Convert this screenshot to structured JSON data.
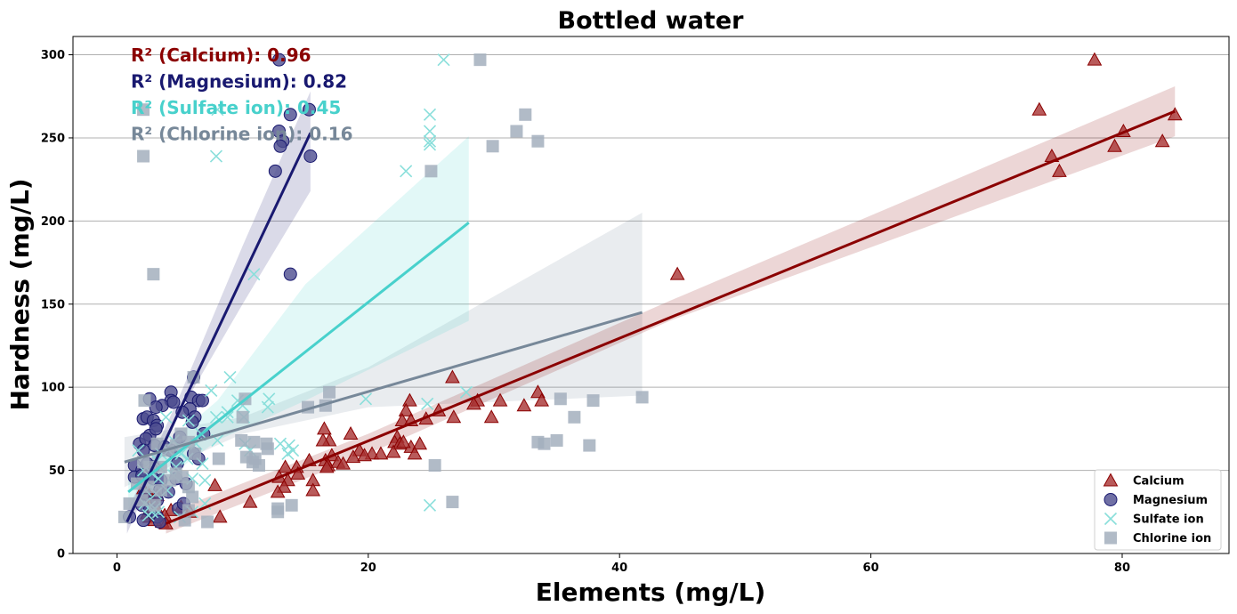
{
  "chart_data": {
    "type": "scatter",
    "title": "Bottled water",
    "xlabel": "Elements (mg/L)",
    "ylabel": "Hardness (mg/L)",
    "xlim": [
      -3.5,
      88.5
    ],
    "ylim": [
      0,
      311
    ],
    "xticks": [
      0,
      20,
      40,
      60,
      80
    ],
    "yticks": [
      0,
      50,
      100,
      150,
      200,
      250,
      300
    ],
    "grid": "horizontal",
    "legend_position": "bottom-right",
    "annotations": [
      {
        "series": "Calcium",
        "text": "R² (Calcium): 0.96"
      },
      {
        "series": "Magnesium",
        "text": "R² (Magnesium): 0.82"
      },
      {
        "series": "Sulfate ion",
        "text": "R² (Sulfate ion): 0.45"
      },
      {
        "series": "Chlorine ion",
        "text": "R² (Chlorine ion): 0.16"
      }
    ],
    "series": [
      {
        "name": "Calcium",
        "marker": "triangle",
        "color": "#8b0000",
        "fill": "#a83232",
        "regression": {
          "x0": 3.9,
          "y0": 18,
          "x1": 84.2,
          "y1": 266
        },
        "band": [
          [
            3.9,
            12,
            24
          ],
          [
            20,
            60,
            72
          ],
          [
            44,
            140,
            152
          ],
          [
            84.2,
            251,
            281
          ]
        ],
        "points": [
          [
            77.8,
            297
          ],
          [
            73.4,
            267
          ],
          [
            84.2,
            264
          ],
          [
            80.1,
            254
          ],
          [
            74.4,
            239
          ],
          [
            83.2,
            248
          ],
          [
            79.4,
            245
          ],
          [
            75.0,
            230
          ],
          [
            44.6,
            168
          ],
          [
            26.7,
            106
          ],
          [
            23.3,
            92
          ],
          [
            33.5,
            97
          ],
          [
            33.8,
            92
          ],
          [
            28.7,
            92
          ],
          [
            30.5,
            92
          ],
          [
            28.4,
            90
          ],
          [
            32.4,
            89
          ],
          [
            25.6,
            86
          ],
          [
            23.0,
            86
          ],
          [
            26.8,
            82
          ],
          [
            29.8,
            82
          ],
          [
            24.6,
            81
          ],
          [
            22.7,
            80
          ],
          [
            23.4,
            80
          ],
          [
            16.5,
            75
          ],
          [
            18.6,
            72
          ],
          [
            16.9,
            68
          ],
          [
            16.4,
            68
          ],
          [
            22.3,
            70
          ],
          [
            22.1,
            67
          ],
          [
            22.5,
            66
          ],
          [
            23.4,
            64
          ],
          [
            24.1,
            66
          ],
          [
            22.8,
            67
          ],
          [
            19.3,
            62
          ],
          [
            18.8,
            58
          ],
          [
            20.3,
            60
          ],
          [
            21.0,
            60
          ],
          [
            22.0,
            61
          ],
          [
            23.7,
            60
          ],
          [
            19.7,
            59
          ],
          [
            16.6,
            56
          ],
          [
            17.1,
            59
          ],
          [
            15.3,
            56
          ],
          [
            16.8,
            53
          ],
          [
            17.6,
            55
          ],
          [
            18.0,
            54
          ],
          [
            16.7,
            52
          ],
          [
            14.3,
            52
          ],
          [
            13.4,
            52
          ],
          [
            12.9,
            46
          ],
          [
            14.4,
            48
          ],
          [
            13.6,
            44
          ],
          [
            13.3,
            40
          ],
          [
            15.6,
            44
          ],
          [
            15.6,
            38
          ],
          [
            12.8,
            37
          ],
          [
            7.8,
            41
          ],
          [
            10.6,
            31
          ],
          [
            8.2,
            22
          ],
          [
            5.8,
            25
          ],
          [
            5.1,
            28
          ],
          [
            4.3,
            26
          ],
          [
            3.8,
            23
          ],
          [
            3.6,
            19
          ],
          [
            3.9,
            18
          ],
          [
            2.8,
            33
          ],
          [
            2.7,
            27
          ],
          [
            2.6,
            22
          ],
          [
            3.0,
            20
          ],
          [
            2.4,
            24
          ],
          [
            3.1,
            28
          ],
          [
            2.1,
            39
          ],
          [
            2.5,
            36
          ],
          [
            3.2,
            35
          ]
        ]
      },
      {
        "name": "Magnesium",
        "marker": "circle",
        "color": "#191970",
        "fill": "#4c4c8e",
        "regression": {
          "x0": 0.8,
          "y0": 19,
          "x1": 15.4,
          "y1": 253
        },
        "band": [
          [
            0.8,
            12,
            25
          ],
          [
            5,
            85,
            95
          ],
          [
            10,
            150,
            185
          ],
          [
            15.4,
            218,
            278
          ]
        ],
        "points": [
          [
            12.9,
            297
          ],
          [
            15.3,
            267
          ],
          [
            13.8,
            264
          ],
          [
            12.9,
            254
          ],
          [
            13.2,
            248
          ],
          [
            13.0,
            245
          ],
          [
            15.4,
            239
          ],
          [
            12.6,
            230
          ],
          [
            13.8,
            168
          ],
          [
            6.1,
            106
          ],
          [
            4.3,
            97
          ],
          [
            2.6,
            93
          ],
          [
            5.9,
            94
          ],
          [
            4.3,
            92
          ],
          [
            6.5,
            92
          ],
          [
            6.8,
            92
          ],
          [
            3.6,
            89
          ],
          [
            3.1,
            88
          ],
          [
            4.5,
            91
          ],
          [
            5.8,
            87
          ],
          [
            2.1,
            81
          ],
          [
            2.4,
            82
          ],
          [
            6.2,
            82
          ],
          [
            5.2,
            85
          ],
          [
            2.9,
            80
          ],
          [
            3.2,
            77
          ],
          [
            6.0,
            79
          ],
          [
            2.6,
            71
          ],
          [
            3.1,
            75
          ],
          [
            6.9,
            72
          ],
          [
            5.0,
            70
          ],
          [
            1.8,
            66
          ],
          [
            2.3,
            69
          ],
          [
            2.1,
            62
          ],
          [
            3.0,
            65
          ],
          [
            3.8,
            64
          ],
          [
            4.3,
            62
          ],
          [
            6.1,
            60
          ],
          [
            1.4,
            53
          ],
          [
            2.0,
            50
          ],
          [
            2.4,
            54
          ],
          [
            4.8,
            54
          ],
          [
            6.5,
            57
          ],
          [
            1.4,
            46
          ],
          [
            2.0,
            47
          ],
          [
            2.9,
            45
          ],
          [
            3.5,
            44
          ],
          [
            4.7,
            45
          ],
          [
            5.5,
            42
          ],
          [
            2.2,
            35
          ],
          [
            3.2,
            32
          ],
          [
            3.4,
            38
          ],
          [
            4.1,
            37
          ],
          [
            2.0,
            29
          ],
          [
            2.6,
            26
          ],
          [
            3.2,
            22
          ],
          [
            4.9,
            27
          ],
          [
            5.3,
            30
          ],
          [
            2.1,
            20
          ],
          [
            3.4,
            19
          ],
          [
            1.0,
            22
          ],
          [
            2.9,
            52
          ]
        ]
      },
      {
        "name": "Sulfate ion",
        "marker": "x",
        "color": "#48d1cc",
        "fill": "#8adfdb",
        "regression": {
          "x0": 0.9,
          "y0": 37,
          "x1": 28.0,
          "y1": 199
        },
        "band": [
          [
            0.9,
            28,
            46
          ],
          [
            8,
            68,
            92
          ],
          [
            15,
            92,
            162
          ],
          [
            28,
            140,
            251
          ]
        ],
        "points": [
          [
            26.0,
            297
          ],
          [
            8.0,
            267
          ],
          [
            24.9,
            264
          ],
          [
            24.9,
            254
          ],
          [
            24.9,
            248
          ],
          [
            24.9,
            246
          ],
          [
            7.9,
            239
          ],
          [
            23.0,
            230
          ],
          [
            10.9,
            168
          ],
          [
            9.0,
            106
          ],
          [
            7.5,
            98
          ],
          [
            27.8,
            97
          ],
          [
            12.1,
            93
          ],
          [
            19.8,
            93
          ],
          [
            24.7,
            90
          ],
          [
            9.6,
            92
          ],
          [
            10.0,
            89
          ],
          [
            12.0,
            88
          ],
          [
            8.8,
            85
          ],
          [
            8.8,
            82
          ],
          [
            7.9,
            82
          ],
          [
            3.9,
            82
          ],
          [
            5.7,
            80
          ],
          [
            10.1,
            82
          ],
          [
            6.7,
            72
          ],
          [
            4.5,
            68
          ],
          [
            8.0,
            68
          ],
          [
            6.3,
            66
          ],
          [
            10.2,
            66
          ],
          [
            13.7,
            65
          ],
          [
            13.0,
            66
          ],
          [
            14.0,
            62
          ],
          [
            13.6,
            60
          ],
          [
            10.6,
            62
          ],
          [
            4.1,
            62
          ],
          [
            3.5,
            60
          ],
          [
            5.1,
            60
          ],
          [
            5.6,
            57
          ],
          [
            3.2,
            56
          ],
          [
            3.4,
            52
          ],
          [
            4.7,
            52
          ],
          [
            6.8,
            54
          ],
          [
            2.1,
            50
          ],
          [
            2.8,
            48
          ],
          [
            3.3,
            45
          ],
          [
            4.5,
            47
          ],
          [
            6.0,
            45
          ],
          [
            7.0,
            44
          ],
          [
            2.3,
            38
          ],
          [
            3.1,
            36
          ],
          [
            4.0,
            38
          ],
          [
            2.2,
            30
          ],
          [
            2.6,
            28
          ],
          [
            3.0,
            27
          ],
          [
            3.3,
            25
          ],
          [
            2.8,
            25
          ],
          [
            2.5,
            23
          ],
          [
            6.0,
            25
          ],
          [
            5.0,
            22
          ],
          [
            24.9,
            29
          ],
          [
            7.0,
            30
          ],
          [
            1.7,
            62
          ]
        ]
      },
      {
        "name": "Chlorine ion",
        "marker": "square",
        "color": "#778899",
        "fill": "#a3afbd",
        "regression": {
          "x0": 0.6,
          "y0": 55,
          "x1": 41.8,
          "y1": 145
        },
        "band": [
          [
            0.6,
            40,
            70
          ],
          [
            10,
            72,
            82
          ],
          [
            20,
            88,
            112
          ],
          [
            41.8,
            95,
            205
          ]
        ],
        "points": [
          [
            28.9,
            297
          ],
          [
            2.1,
            267
          ],
          [
            32.5,
            264
          ],
          [
            31.8,
            254
          ],
          [
            33.5,
            248
          ],
          [
            29.9,
            245
          ],
          [
            2.1,
            239
          ],
          [
            25.0,
            230
          ],
          [
            2.9,
            168
          ],
          [
            6.1,
            106
          ],
          [
            16.9,
            97
          ],
          [
            2.2,
            92
          ],
          [
            10.2,
            93
          ],
          [
            15.2,
            88
          ],
          [
            16.6,
            89
          ],
          [
            35.3,
            93
          ],
          [
            37.9,
            92
          ],
          [
            41.8,
            94
          ],
          [
            36.4,
            82
          ],
          [
            10.0,
            82
          ],
          [
            33.5,
            67
          ],
          [
            34.0,
            66
          ],
          [
            35.0,
            68
          ],
          [
            37.6,
            65
          ],
          [
            9.9,
            68
          ],
          [
            10.9,
            67
          ],
          [
            11.9,
            66
          ],
          [
            12.0,
            63
          ],
          [
            11.0,
            57
          ],
          [
            11.3,
            53
          ],
          [
            10.3,
            58
          ],
          [
            10.8,
            55
          ],
          [
            8.1,
            57
          ],
          [
            5.1,
            72
          ],
          [
            5.7,
            67
          ],
          [
            6.2,
            60
          ],
          [
            4.7,
            65
          ],
          [
            4.1,
            62
          ],
          [
            3.2,
            66
          ],
          [
            2.1,
            55
          ],
          [
            2.6,
            52
          ],
          [
            3.5,
            52
          ],
          [
            4.7,
            48
          ],
          [
            5.2,
            46
          ],
          [
            4.2,
            44
          ],
          [
            1.6,
            42
          ],
          [
            2.5,
            40
          ],
          [
            3.5,
            38
          ],
          [
            5.7,
            40
          ],
          [
            6.0,
            34
          ],
          [
            2.0,
            32
          ],
          [
            3.0,
            29
          ],
          [
            1.0,
            30
          ],
          [
            5.7,
            26
          ],
          [
            12.8,
            27
          ],
          [
            13.9,
            29
          ],
          [
            12.8,
            25
          ],
          [
            25.3,
            53
          ],
          [
            26.7,
            31
          ],
          [
            7.2,
            19
          ],
          [
            5.4,
            20
          ],
          [
            0.6,
            22
          ]
        ]
      }
    ]
  }
}
